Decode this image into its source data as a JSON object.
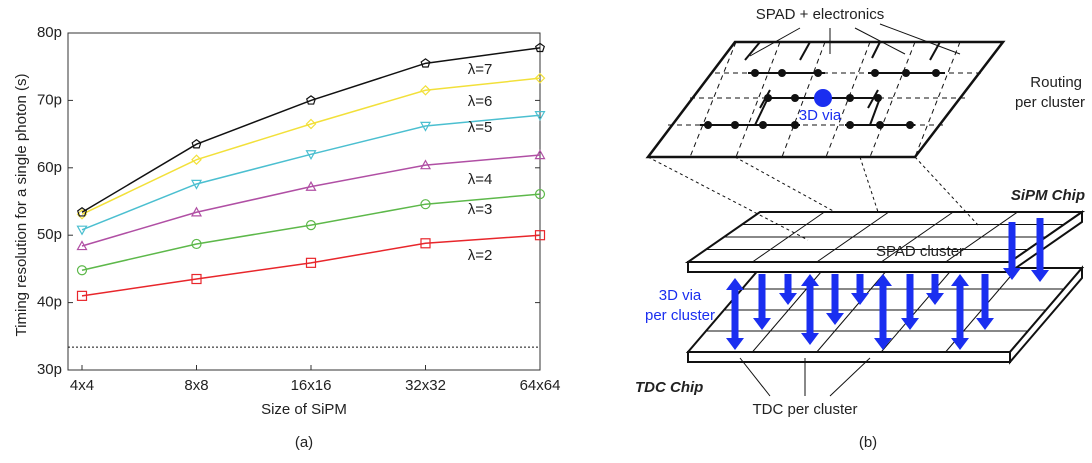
{
  "chart_data": {
    "type": "line",
    "y_label": "Timing resolution for a single photon (s)",
    "x_label": "Size of SiPM",
    "categories": [
      "4x4",
      "8x8",
      "16x16",
      "32x32",
      "64x64"
    ],
    "ylim": [
      30,
      80
    ],
    "yticks": [
      {
        "value": 30,
        "label": "30p"
      },
      {
        "value": 40,
        "label": "40p"
      },
      {
        "value": 50,
        "label": "50p"
      },
      {
        "value": 60,
        "label": "60p"
      },
      {
        "value": 70,
        "label": "70p"
      },
      {
        "value": 80,
        "label": "80p"
      }
    ],
    "reference_line": 33.4,
    "series": [
      {
        "name": "λ=2",
        "color": "#e8262b",
        "marker": "square",
        "values": [
          41.0,
          43.5,
          45.9,
          48.8,
          50.0
        ]
      },
      {
        "name": "λ=3",
        "color": "#5db84a",
        "marker": "circle",
        "values": [
          44.8,
          48.7,
          51.5,
          54.6,
          56.1
        ]
      },
      {
        "name": "λ=4",
        "color": "#b04fa4",
        "marker": "triangle",
        "values": [
          48.4,
          53.4,
          57.2,
          60.4,
          61.9
        ]
      },
      {
        "name": "λ=5",
        "color": "#4bbfd0",
        "marker": "triangle-down",
        "values": [
          50.8,
          57.6,
          62.0,
          66.2,
          67.8
        ]
      },
      {
        "name": "λ=6",
        "color": "#f2e03a",
        "marker": "diamond",
        "values": [
          53.1,
          61.2,
          66.5,
          71.5,
          73.3
        ]
      },
      {
        "name": "λ=7",
        "color": "#111111",
        "marker": "pentagon",
        "values": [
          53.4,
          63.5,
          70.0,
          75.5,
          77.8
        ]
      }
    ]
  },
  "diagram": {
    "top_label": "SPAD + electronics",
    "routing": [
      "Routing",
      "per cluster"
    ],
    "via": "3D via",
    "sipm": "SiPM Chip",
    "spad_cluster": "SPAD cluster",
    "via_per_cluster": [
      "3D via",
      "per cluster"
    ],
    "tdc": "TDC Chip",
    "tdc_per_cluster": "TDC per cluster"
  },
  "captions": [
    "(a)",
    "(b)"
  ]
}
